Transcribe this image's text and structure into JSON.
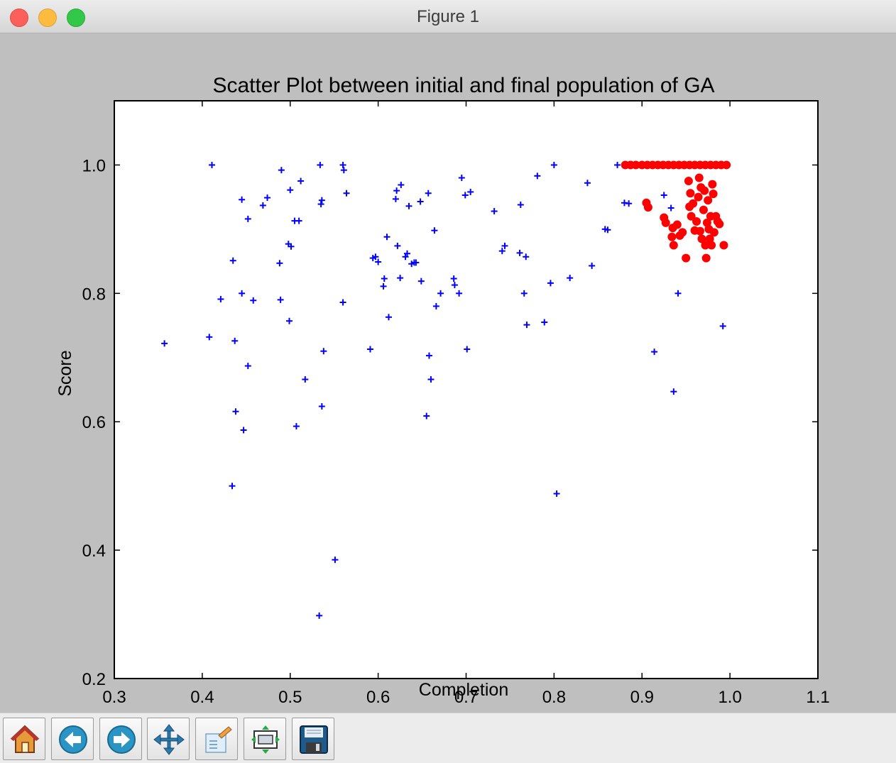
{
  "window": {
    "title": "Figure 1"
  },
  "toolbar": {
    "buttons": [
      {
        "name": "home-button",
        "icon": "home-icon"
      },
      {
        "name": "back-button",
        "icon": "back-arrow-icon"
      },
      {
        "name": "forward-button",
        "icon": "forward-arrow-icon"
      },
      {
        "name": "pan-button",
        "icon": "move-icon"
      },
      {
        "name": "zoom-button",
        "icon": "zoom-rect-icon"
      },
      {
        "name": "subplots-button",
        "icon": "subplots-icon"
      },
      {
        "name": "save-button",
        "icon": "floppy-disk-icon"
      }
    ]
  },
  "chart_data": {
    "type": "scatter",
    "title": "Scatter Plot between initial and final population of GA",
    "xlabel": "Completion",
    "ylabel": "Score",
    "xlim": [
      0.3,
      1.1
    ],
    "ylim": [
      0.2,
      1.1
    ],
    "xticks": [
      0.3,
      0.4,
      0.5,
      0.6,
      0.7,
      0.8,
      0.9,
      1.0,
      1.1
    ],
    "yticks": [
      0.2,
      0.4,
      0.6,
      0.8,
      1.0
    ],
    "xtick_labels": [
      "0.3",
      "0.4",
      "0.5",
      "0.6",
      "0.7",
      "0.8",
      "0.9",
      "1.0",
      "1.1"
    ],
    "ytick_labels": [
      "0.2",
      "0.4",
      "0.6",
      "0.8",
      "1.0"
    ],
    "grid": false,
    "series": [
      {
        "marker": "plus",
        "color": "#0000ff",
        "points": [
          [
            0.357,
            0.722
          ],
          [
            0.408,
            0.732
          ],
          [
            0.411,
            1.0
          ],
          [
            0.421,
            0.791
          ],
          [
            0.434,
            0.5
          ],
          [
            0.435,
            0.851
          ],
          [
            0.437,
            0.726
          ],
          [
            0.438,
            0.616
          ],
          [
            0.445,
            0.8
          ],
          [
            0.445,
            0.946
          ],
          [
            0.447,
            0.587
          ],
          [
            0.452,
            0.916
          ],
          [
            0.452,
            0.687
          ],
          [
            0.458,
            0.789
          ],
          [
            0.469,
            0.937
          ],
          [
            0.474,
            0.949
          ],
          [
            0.488,
            0.847
          ],
          [
            0.489,
            0.79
          ],
          [
            0.49,
            0.992
          ],
          [
            0.498,
            0.877
          ],
          [
            0.499,
            0.757
          ],
          [
            0.5,
            0.961
          ],
          [
            0.501,
            0.873
          ],
          [
            0.505,
            0.913
          ],
          [
            0.507,
            0.593
          ],
          [
            0.51,
            0.913
          ],
          [
            0.512,
            0.975
          ],
          [
            0.517,
            0.666
          ],
          [
            0.533,
            0.298
          ],
          [
            0.534,
            1.0
          ],
          [
            0.535,
            0.939
          ],
          [
            0.536,
            0.945
          ],
          [
            0.536,
            0.624
          ],
          [
            0.538,
            0.71
          ],
          [
            0.551,
            0.385
          ],
          [
            0.56,
            1.0
          ],
          [
            0.56,
            0.786
          ],
          [
            0.561,
            0.992
          ],
          [
            0.564,
            0.956
          ],
          [
            0.591,
            0.713
          ],
          [
            0.594,
            0.855
          ],
          [
            0.597,
            0.857
          ],
          [
            0.6,
            0.849
          ],
          [
            0.606,
            0.811
          ],
          [
            0.607,
            0.823
          ],
          [
            0.61,
            0.888
          ],
          [
            0.612,
            0.763
          ],
          [
            0.62,
            0.947
          ],
          [
            0.621,
            0.96
          ],
          [
            0.622,
            0.874
          ],
          [
            0.625,
            0.824
          ],
          [
            0.626,
            0.969
          ],
          [
            0.631,
            0.857
          ],
          [
            0.633,
            0.862
          ],
          [
            0.635,
            0.936
          ],
          [
            0.638,
            0.846
          ],
          [
            0.641,
            0.848
          ],
          [
            0.643,
            0.848
          ],
          [
            0.648,
            0.943
          ],
          [
            0.649,
            0.819
          ],
          [
            0.655,
            0.609
          ],
          [
            0.657,
            0.956
          ],
          [
            0.658,
            0.703
          ],
          [
            0.66,
            0.666
          ],
          [
            0.664,
            0.898
          ],
          [
            0.666,
            0.78
          ],
          [
            0.671,
            0.8
          ],
          [
            0.686,
            0.823
          ],
          [
            0.687,
            0.813
          ],
          [
            0.692,
            0.8
          ],
          [
            0.695,
            0.98
          ],
          [
            0.699,
            0.953
          ],
          [
            0.701,
            0.713
          ],
          [
            0.705,
            0.958
          ],
          [
            0.732,
            0.928
          ],
          [
            0.741,
            0.866
          ],
          [
            0.744,
            0.874
          ],
          [
            0.761,
            0.863
          ],
          [
            0.762,
            0.938
          ],
          [
            0.766,
            0.8
          ],
          [
            0.768,
            0.857
          ],
          [
            0.769,
            0.751
          ],
          [
            0.781,
            0.983
          ],
          [
            0.789,
            0.755
          ],
          [
            0.796,
            0.816
          ],
          [
            0.8,
            1.0
          ],
          [
            0.803,
            0.488
          ],
          [
            0.818,
            0.824
          ],
          [
            0.838,
            0.972
          ],
          [
            0.843,
            0.843
          ],
          [
            0.858,
            0.9
          ],
          [
            0.861,
            0.899
          ],
          [
            0.872,
            1.0
          ],
          [
            0.88,
            0.941
          ],
          [
            0.885,
            0.94
          ],
          [
            0.914,
            0.709
          ],
          [
            0.925,
            0.953
          ],
          [
            0.933,
            0.933
          ],
          [
            0.936,
            0.647
          ],
          [
            0.941,
            0.8
          ],
          [
            0.992,
            0.749
          ]
        ]
      },
      {
        "marker": "circle",
        "color": "#ff0000",
        "points": [
          [
            0.881,
            1.0
          ],
          [
            0.887,
            1.0
          ],
          [
            0.893,
            1.0
          ],
          [
            0.9,
            1.0
          ],
          [
            0.906,
            1.0
          ],
          [
            0.912,
            1.0
          ],
          [
            0.918,
            1.0
          ],
          [
            0.924,
            1.0
          ],
          [
            0.93,
            1.0
          ],
          [
            0.936,
            1.0
          ],
          [
            0.942,
            1.0
          ],
          [
            0.948,
            1.0
          ],
          [
            0.954,
            1.0
          ],
          [
            0.96,
            1.0
          ],
          [
            0.966,
            1.0
          ],
          [
            0.972,
            1.0
          ],
          [
            0.978,
            1.0
          ],
          [
            0.984,
            1.0
          ],
          [
            0.99,
            1.0
          ],
          [
            0.996,
            1.0
          ],
          [
            0.905,
            0.941
          ],
          [
            0.907,
            0.934
          ],
          [
            0.925,
            0.918
          ],
          [
            0.927,
            0.91
          ],
          [
            0.935,
            0.902
          ],
          [
            0.934,
            0.888
          ],
          [
            0.936,
            0.875
          ],
          [
            0.94,
            0.907
          ],
          [
            0.943,
            0.89
          ],
          [
            0.946,
            0.895
          ],
          [
            0.95,
            0.855
          ],
          [
            0.953,
            0.975
          ],
          [
            0.954,
            0.935
          ],
          [
            0.955,
            0.956
          ],
          [
            0.956,
            0.92
          ],
          [
            0.958,
            0.94
          ],
          [
            0.96,
            0.898
          ],
          [
            0.962,
            0.912
          ],
          [
            0.964,
            0.95
          ],
          [
            0.965,
            0.98
          ],
          [
            0.966,
            0.897
          ],
          [
            0.967,
            0.965
          ],
          [
            0.968,
            0.885
          ],
          [
            0.97,
            0.93
          ],
          [
            0.971,
            0.96
          ],
          [
            0.972,
            0.875
          ],
          [
            0.973,
            0.855
          ],
          [
            0.974,
            0.91
          ],
          [
            0.975,
            0.945
          ],
          [
            0.976,
            0.9
          ],
          [
            0.977,
            0.885
          ],
          [
            0.978,
            0.92
          ],
          [
            0.979,
            0.875
          ],
          [
            0.98,
            0.97
          ],
          [
            0.981,
            0.955
          ],
          [
            0.982,
            0.895
          ],
          [
            0.984,
            0.92
          ],
          [
            0.986,
            0.912
          ],
          [
            0.988,
            0.908
          ],
          [
            0.993,
            0.875
          ]
        ]
      }
    ]
  }
}
